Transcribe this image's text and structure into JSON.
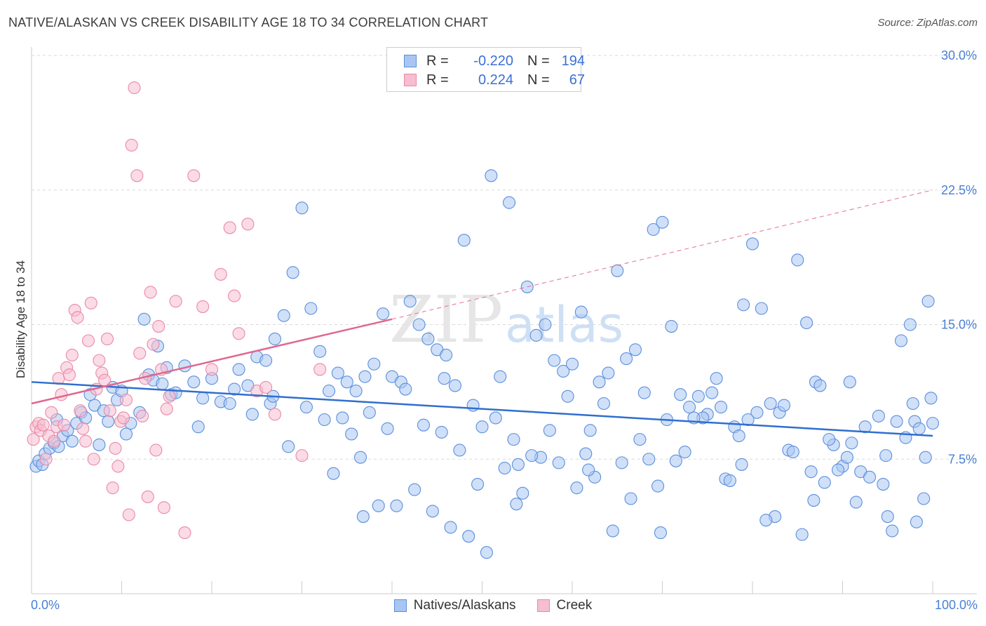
{
  "title": "NATIVE/ALASKAN VS CREEK DISABILITY AGE 18 TO 34 CORRELATION CHART",
  "source": "Source: ZipAtlas.com",
  "legend": {
    "rows": [
      {
        "r_label": "R =",
        "r_value": "-0.220",
        "n_label": "N =",
        "n_value": "194"
      },
      {
        "r_label": "R =",
        "r_value": "0.224",
        "n_label": "N =",
        "n_value": "67"
      }
    ]
  },
  "bottom_legend": [
    "Natives/Alaskans",
    "Creek"
  ],
  "x_tick_left": "0.0%",
  "x_tick_right": "100.0%",
  "chart_data": {
    "type": "scatter",
    "title": "NATIVE/ALASKAN VS CREEK DISABILITY AGE 18 TO 34 CORRELATION CHART",
    "xlabel": "",
    "ylabel": "Disability Age 18 to 34",
    "xlim": [
      0,
      100
    ],
    "ylim": [
      0,
      30
    ],
    "y_ticks": [
      {
        "value": 7.5,
        "label": "7.5%"
      },
      {
        "value": 15,
        "label": "15.0%"
      },
      {
        "value": 22.5,
        "label": "22.5%"
      },
      {
        "value": 30,
        "label": "30.0%"
      }
    ],
    "colors": {
      "blue_fill": "#a9c6f2",
      "blue_stroke": "#5b8fdc",
      "blue_line": "#2f6fce",
      "pink_fill": "#f7bdd0",
      "pink_stroke": "#e98aa8",
      "pink_line": "#e0688f",
      "grid": "#d9d9d9",
      "axis_text": "#4a7fd4"
    },
    "series": [
      {
        "name": "Natives/Alaskans",
        "r": -0.22,
        "n": 194,
        "trend": {
          "x": [
            0,
            100
          ],
          "y": [
            11.8,
            8.8
          ],
          "style": "solid"
        },
        "points": [
          [
            0.5,
            7.1
          ],
          [
            0.8,
            7.4
          ],
          [
            1.2,
            7.2
          ],
          [
            1.5,
            7.8
          ],
          [
            2,
            8.1
          ],
          [
            2.5,
            8.4
          ],
          [
            3,
            8.2
          ],
          [
            3.5,
            8.8
          ],
          [
            4,
            9.1
          ],
          [
            4.5,
            8.5
          ],
          [
            5,
            9.5
          ],
          [
            5.5,
            10.1
          ],
          [
            6,
            9.8
          ],
          [
            7,
            10.5
          ],
          [
            7.5,
            8.3
          ],
          [
            8,
            10.2
          ],
          [
            8.5,
            9.6
          ],
          [
            9,
            11.5
          ],
          [
            9.5,
            10.8
          ],
          [
            10,
            11.3
          ],
          [
            11,
            9.5
          ],
          [
            12,
            10.1
          ],
          [
            13,
            12.2
          ],
          [
            13.5,
            11.9
          ],
          [
            14,
            13.8
          ],
          [
            15,
            12.6
          ],
          [
            15.5,
            11.1
          ],
          [
            16,
            11.2
          ],
          [
            17,
            12.7
          ],
          [
            18,
            11.8
          ],
          [
            19,
            10.9
          ],
          [
            20,
            12.0
          ],
          [
            21,
            10.7
          ],
          [
            22,
            10.6
          ],
          [
            23,
            12.5
          ],
          [
            24,
            11.6
          ],
          [
            25,
            13.2
          ],
          [
            26,
            13.0
          ],
          [
            27,
            14.2
          ],
          [
            28,
            15.5
          ],
          [
            12.5,
            15.3
          ],
          [
            26.5,
            10.6
          ],
          [
            29,
            17.9
          ],
          [
            30,
            21.5
          ],
          [
            31,
            15.9
          ],
          [
            32,
            13.5
          ],
          [
            33,
            11.3
          ],
          [
            34,
            12.3
          ],
          [
            35,
            11.8
          ],
          [
            36,
            11.3
          ],
          [
            37,
            12.1
          ],
          [
            38,
            12.8
          ],
          [
            39,
            15.6
          ],
          [
            40,
            12.1
          ],
          [
            41,
            11.8
          ],
          [
            42,
            16.3
          ],
          [
            43,
            15.0
          ],
          [
            44,
            14.2
          ],
          [
            45,
            13.6
          ],
          [
            46,
            13.3
          ],
          [
            47,
            11.6
          ],
          [
            48,
            19.7
          ],
          [
            49,
            10.5
          ],
          [
            50,
            9.3
          ],
          [
            51,
            23.3
          ],
          [
            52,
            12.1
          ],
          [
            53,
            21.8
          ],
          [
            54,
            7.2
          ],
          [
            55,
            17.1
          ],
          [
            56,
            14.4
          ],
          [
            57,
            15.0
          ],
          [
            58,
            13.0
          ],
          [
            59,
            12.4
          ],
          [
            60,
            12.8
          ],
          [
            61,
            15.7
          ],
          [
            62,
            9.1
          ],
          [
            63,
            11.8
          ],
          [
            64,
            12.3
          ],
          [
            65,
            18.0
          ],
          [
            66,
            13.1
          ],
          [
            67,
            13.6
          ],
          [
            68,
            11.2
          ],
          [
            69,
            20.3
          ],
          [
            70,
            20.7
          ],
          [
            71,
            14.9
          ],
          [
            72,
            11.1
          ],
          [
            73,
            10.4
          ],
          [
            74,
            11.0
          ],
          [
            75,
            10.0
          ],
          [
            76,
            12.0
          ],
          [
            77,
            6.4
          ],
          [
            78,
            9.3
          ],
          [
            79,
            16.1
          ],
          [
            80,
            19.5
          ],
          [
            81,
            15.9
          ],
          [
            82,
            10.6
          ],
          [
            83,
            10.1
          ],
          [
            84,
            8.0
          ],
          [
            85,
            18.6
          ],
          [
            86,
            15.1
          ],
          [
            87,
            11.8
          ],
          [
            88,
            6.2
          ],
          [
            89,
            8.3
          ],
          [
            90,
            7.1
          ],
          [
            91,
            8.4
          ],
          [
            92,
            6.8
          ],
          [
            93,
            6.5
          ],
          [
            94,
            9.9
          ],
          [
            95,
            4.3
          ],
          [
            96,
            9.6
          ],
          [
            97,
            8.7
          ],
          [
            98,
            9.6
          ],
          [
            99,
            5.3
          ],
          [
            100,
            9.5
          ],
          [
            95.5,
            3.5
          ],
          [
            96.5,
            14.1
          ],
          [
            97.5,
            15.0
          ],
          [
            98.5,
            9.2
          ],
          [
            99.5,
            16.3
          ],
          [
            99.8,
            10.9
          ],
          [
            36.5,
            7.6
          ],
          [
            38.5,
            4.9
          ],
          [
            40.5,
            4.9
          ],
          [
            42.5,
            5.8
          ],
          [
            44.5,
            4.6
          ],
          [
            46.5,
            3.7
          ],
          [
            48.5,
            3.2
          ],
          [
            50.5,
            2.3
          ],
          [
            52.5,
            7.0
          ],
          [
            54.5,
            5.6
          ],
          [
            56.5,
            7.6
          ],
          [
            58.5,
            7.3
          ],
          [
            60.5,
            5.9
          ],
          [
            62.5,
            6.5
          ],
          [
            64.5,
            3.5
          ],
          [
            66.5,
            5.3
          ],
          [
            68.5,
            7.5
          ],
          [
            70.5,
            9.7
          ],
          [
            72.5,
            7.9
          ],
          [
            74.5,
            9.8
          ],
          [
            76.5,
            10.4
          ],
          [
            78.5,
            8.8
          ],
          [
            80.5,
            10.1
          ],
          [
            82.5,
            4.3
          ],
          [
            84.5,
            7.9
          ],
          [
            86.5,
            6.8
          ],
          [
            88.5,
            8.6
          ],
          [
            90.5,
            7.6
          ],
          [
            92.5,
            9.3
          ],
          [
            94.5,
            6.1
          ],
          [
            33.5,
            6.7
          ],
          [
            35.5,
            8.9
          ],
          [
            37.5,
            10.1
          ],
          [
            39.5,
            9.2
          ],
          [
            41.5,
            11.4
          ],
          [
            43.5,
            9.4
          ],
          [
            45.5,
            9.0
          ],
          [
            47.5,
            8.0
          ],
          [
            49.5,
            6.1
          ],
          [
            51.5,
            9.8
          ],
          [
            53.5,
            8.6
          ],
          [
            55.5,
            7.7
          ],
          [
            57.5,
            9.1
          ],
          [
            59.5,
            11.0
          ],
          [
            61.5,
            7.8
          ],
          [
            63.5,
            10.6
          ],
          [
            65.5,
            7.3
          ],
          [
            67.5,
            8.6
          ],
          [
            69.5,
            6.0
          ],
          [
            71.5,
            7.4
          ],
          [
            73.5,
            9.8
          ],
          [
            75.5,
            11.2
          ],
          [
            77.5,
            6.3
          ],
          [
            79.5,
            9.7
          ],
          [
            81.5,
            4.1
          ],
          [
            83.5,
            10.5
          ],
          [
            85.5,
            3.3
          ],
          [
            87.5,
            11.6
          ],
          [
            89.5,
            6.9
          ],
          [
            91.5,
            5.1
          ],
          [
            2.8,
            9.7
          ],
          [
            6.5,
            11.1
          ],
          [
            10.5,
            8.9
          ],
          [
            14.5,
            11.7
          ],
          [
            18.5,
            9.3
          ],
          [
            22.5,
            11.4
          ],
          [
            26.8,
            11.0
          ],
          [
            30.5,
            10.4
          ],
          [
            34.5,
            9.8
          ],
          [
            98.2,
            4.0
          ],
          [
            24.5,
            10.0
          ],
          [
            28.5,
            8.2
          ],
          [
            32.5,
            9.7
          ],
          [
            36.8,
            4.3
          ],
          [
            45.8,
            12.0
          ],
          [
            53.8,
            5.0
          ],
          [
            61.8,
            6.9
          ],
          [
            69.8,
            3.4
          ],
          [
            78.8,
            7.2
          ],
          [
            86.8,
            5.2
          ],
          [
            90.8,
            11.8
          ],
          [
            94.8,
            7.7
          ],
          [
            97.8,
            10.6
          ],
          [
            99.2,
            7.6
          ]
        ]
      },
      {
        "name": "Creek",
        "r": 0.224,
        "n": 67,
        "trend": {
          "x": [
            0,
            40,
            100
          ],
          "y": [
            10.6,
            15.3,
            22.5
          ],
          "style": "solid-then-dashed"
        },
        "points": [
          [
            0.2,
            8.6
          ],
          [
            0.5,
            9.3
          ],
          [
            0.8,
            9.5
          ],
          [
            1,
            9.1
          ],
          [
            1.3,
            9.4
          ],
          [
            1.6,
            7.5
          ],
          [
            1.9,
            8.8
          ],
          [
            2.2,
            10.1
          ],
          [
            2.5,
            8.5
          ],
          [
            2.8,
            9.3
          ],
          [
            3,
            12.0
          ],
          [
            3.3,
            11.1
          ],
          [
            3.6,
            9.4
          ],
          [
            3.9,
            12.6
          ],
          [
            4.2,
            12.2
          ],
          [
            4.5,
            13.3
          ],
          [
            4.8,
            15.8
          ],
          [
            5.1,
            15.4
          ],
          [
            5.4,
            10.2
          ],
          [
            5.7,
            9.2
          ],
          [
            6,
            8.5
          ],
          [
            6.3,
            14.1
          ],
          [
            6.6,
            16.2
          ],
          [
            6.9,
            7.5
          ],
          [
            7.2,
            11.4
          ],
          [
            7.5,
            13.0
          ],
          [
            7.8,
            12.3
          ],
          [
            8.1,
            11.9
          ],
          [
            8.4,
            14.2
          ],
          [
            8.7,
            10.2
          ],
          [
            9,
            5.9
          ],
          [
            9.3,
            8.1
          ],
          [
            9.6,
            7.1
          ],
          [
            9.9,
            9.6
          ],
          [
            10.2,
            9.8
          ],
          [
            10.5,
            10.8
          ],
          [
            10.8,
            4.4
          ],
          [
            11.1,
            25.0
          ],
          [
            11.4,
            28.2
          ],
          [
            11.7,
            23.3
          ],
          [
            12,
            13.4
          ],
          [
            12.3,
            9.9
          ],
          [
            12.6,
            12.0
          ],
          [
            12.9,
            5.4
          ],
          [
            13.2,
            16.8
          ],
          [
            13.5,
            13.9
          ],
          [
            13.8,
            8.0
          ],
          [
            14.1,
            14.9
          ],
          [
            14.4,
            12.5
          ],
          [
            14.7,
            4.8
          ],
          [
            15,
            10.3
          ],
          [
            15.3,
            11.0
          ],
          [
            16,
            16.3
          ],
          [
            17,
            3.4
          ],
          [
            18,
            23.3
          ],
          [
            19,
            16.0
          ],
          [
            20,
            12.5
          ],
          [
            21,
            17.8
          ],
          [
            22,
            20.4
          ],
          [
            22.5,
            16.6
          ],
          [
            23,
            14.5
          ],
          [
            24,
            20.6
          ],
          [
            25,
            11.3
          ],
          [
            26,
            11.5
          ],
          [
            27,
            10.0
          ],
          [
            30,
            7.7
          ],
          [
            32,
            12.5
          ]
        ]
      }
    ]
  }
}
